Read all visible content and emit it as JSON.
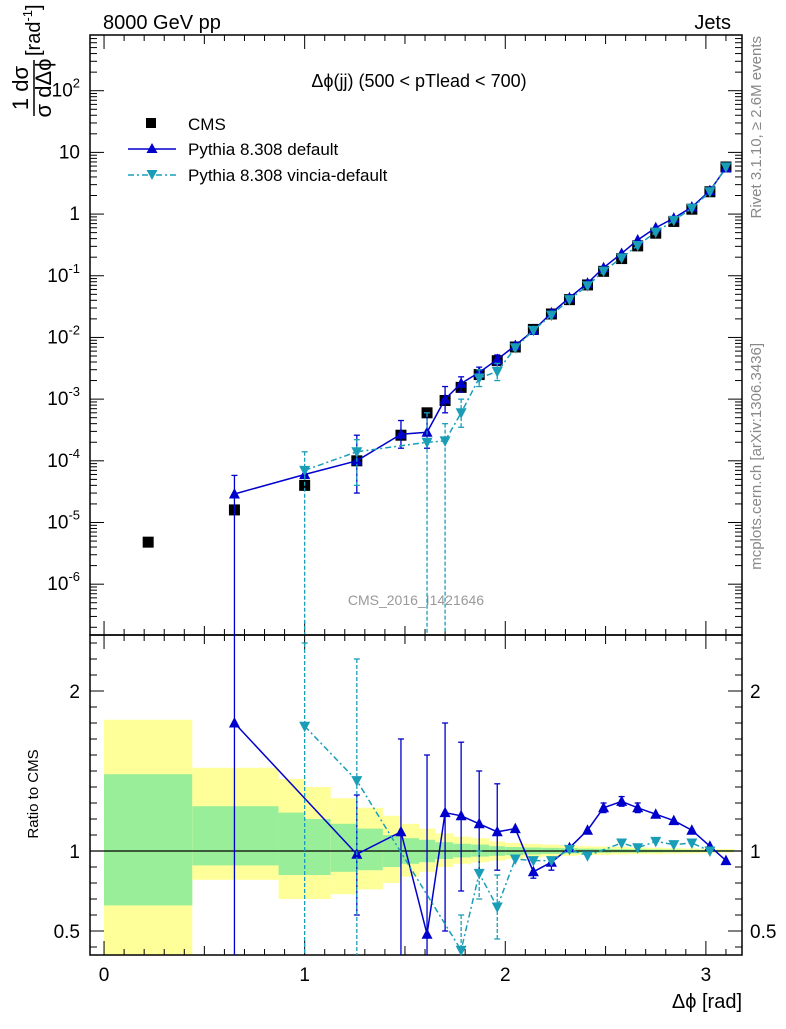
{
  "header": {
    "left": "8000 GeV pp",
    "right": "Jets"
  },
  "side_labels": {
    "rivet": "Rivet 3.1.10, ≥ 2.6M events",
    "mcplots": "mcplots.cern.ch [arXiv:1306.3436]"
  },
  "watermark": "CMS_2016_I1421646",
  "chart_data": [
    {
      "type": "scatter",
      "title": "Δϕ(jj) (500 < pTlead <  700)",
      "ylabel": "1/σ dσ/dΔϕ [rad⁻¹]",
      "ylabel_unit": "[rad",
      "ylabel_sup": "-1",
      "ylabel_close": "]",
      "yscale": "log",
      "ylim": [
        1.5e-07,
        800
      ],
      "xlim": [
        -0.07,
        3.18
      ],
      "y_tick_labels": [
        {
          "base": "10",
          "exp": "-6",
          "value": 1e-06
        },
        {
          "base": "10",
          "exp": "-5",
          "value": 1e-05
        },
        {
          "base": "10",
          "exp": "-4",
          "value": 0.0001
        },
        {
          "base": "10",
          "exp": "-3",
          "value": 0.001
        },
        {
          "base": "10",
          "exp": "-2",
          "value": 0.01
        },
        {
          "base": "10",
          "exp": "-1",
          "value": 0.1
        },
        {
          "base": "1",
          "exp": "",
          "value": 1
        },
        {
          "base": "10",
          "exp": "",
          "value": 10
        },
        {
          "base": "10",
          "exp": "2",
          "value": 100
        }
      ],
      "legend": [
        "CMS",
        "Pythia 8.308 default",
        "Pythia 8.308 vincia-default"
      ],
      "legend_position": "top-left",
      "series": [
        {
          "name": "CMS",
          "color": "#000000",
          "marker": "square",
          "x": [
            0.22,
            0.65,
            1.0,
            1.26,
            1.48,
            1.61,
            1.7,
            1.78,
            1.87,
            1.96,
            2.05,
            2.14,
            2.23,
            2.32,
            2.41,
            2.49,
            2.58,
            2.66,
            2.75,
            2.84,
            2.93,
            3.02,
            3.1
          ],
          "y": [
            4.8e-06,
            1.6e-05,
            4e-05,
            0.0001,
            0.00026,
            0.0006,
            0.00095,
            0.00155,
            0.0025,
            0.0042,
            0.007,
            0.0135,
            0.024,
            0.041,
            0.071,
            0.118,
            0.19,
            0.305,
            0.49,
            0.76,
            1.2,
            2.3,
            5.8
          ]
        },
        {
          "name": "Pythia 8.308 default",
          "color": "#0000cc",
          "marker": "triangle-up",
          "x": [
            0.65,
            1.0,
            1.26,
            1.48,
            1.61,
            1.7,
            1.78,
            1.87,
            1.96,
            2.05,
            2.14,
            2.23,
            2.32,
            2.41,
            2.49,
            2.58,
            2.66,
            2.75,
            2.84,
            2.93,
            3.02,
            3.1
          ],
          "y": [
            2.9e-05,
            6e-05,
            0.0001,
            0.00027,
            0.00029,
            0.001,
            0.0018,
            0.0027,
            0.0044,
            0.0074,
            0.013,
            0.025,
            0.044,
            0.076,
            0.135,
            0.23,
            0.38,
            0.6,
            0.86,
            1.3,
            2.4,
            5.6
          ],
          "err_up": [
            5.8e-05,
            null,
            0.00026,
            0.00045,
            0.0006,
            0.0016,
            0.0023,
            0.0033,
            0.0052,
            null,
            null,
            null,
            null,
            null,
            null,
            null,
            null,
            null,
            null,
            null,
            null,
            null
          ],
          "err_lo": [
            1e-07,
            null,
            3e-05,
            0.00016,
            0.00016,
            0.0006,
            0.0013,
            0.0021,
            0.0036,
            null,
            null,
            null,
            null,
            null,
            null,
            null,
            null,
            null,
            null,
            null,
            null,
            null
          ]
        },
        {
          "name": "Pythia 8.308 vincia-default",
          "color": "#1a9eb8",
          "marker": "triangle-down",
          "x": [
            1.0,
            1.26,
            1.61,
            1.7,
            1.78,
            1.87,
            1.96,
            2.05,
            2.14,
            2.23,
            2.32,
            2.41,
            2.49,
            2.58,
            2.66,
            2.75,
            2.84,
            2.93,
            3.02,
            3.1
          ],
          "y": [
            7e-05,
            0.00014,
            0.0002,
            0.00021,
            0.0006,
            0.0022,
            0.0028,
            0.0068,
            0.013,
            0.023,
            0.041,
            0.069,
            0.119,
            0.195,
            0.31,
            0.51,
            0.79,
            1.24,
            2.3,
            5.8
          ],
          "err_up": [
            0.00014,
            0.00022,
            0.0006,
            0.0004,
            0.001,
            0.003,
            0.0038,
            null,
            null,
            null,
            null,
            null,
            null,
            null,
            null,
            null,
            null,
            null,
            null,
            null
          ],
          "err_lo": [
            1e-07,
            4e-05,
            1e-07,
            1e-07,
            0.00035,
            0.0016,
            0.002,
            null,
            null,
            null,
            null,
            null,
            null,
            null,
            null,
            null,
            null,
            null,
            null,
            null
          ]
        }
      ]
    },
    {
      "type": "line",
      "ylabel": "Ratio to CMS",
      "xlabel": "Δϕ [rad]",
      "xlim": [
        -0.07,
        3.18
      ],
      "ylim": [
        0.35,
        2.35
      ],
      "x_ticks": [
        "0",
        "1",
        "2",
        "3"
      ],
      "y_ticks": [
        "0.5",
        "1",
        "2"
      ],
      "bands": {
        "edges": [
          0.0,
          0.44,
          0.87,
          1.0,
          1.13,
          1.26,
          1.39,
          1.48,
          1.57,
          1.65,
          1.74,
          1.83,
          1.92,
          2.0,
          2.09,
          2.18,
          2.27,
          2.36,
          2.44,
          2.53,
          2.62,
          2.71,
          2.79,
          2.88,
          2.97,
          3.06,
          3.14
        ],
        "yellow_lo": [
          0.35,
          0.82,
          0.7,
          0.7,
          0.73,
          0.76,
          0.8,
          0.84,
          0.87,
          0.9,
          0.92,
          0.93,
          0.94,
          0.95,
          0.96,
          0.965,
          0.97,
          0.975,
          0.975,
          0.978,
          0.98,
          0.98,
          0.983,
          0.985,
          0.987,
          0.99
        ],
        "yellow_hi": [
          1.82,
          1.52,
          1.45,
          1.4,
          1.33,
          1.27,
          1.22,
          1.17,
          1.14,
          1.11,
          1.09,
          1.08,
          1.06,
          1.05,
          1.045,
          1.04,
          1.035,
          1.03,
          1.028,
          1.025,
          1.022,
          1.02,
          1.018,
          1.016,
          1.014,
          1.012
        ],
        "green_lo": [
          0.66,
          0.91,
          0.85,
          0.85,
          0.87,
          0.88,
          0.9,
          0.92,
          0.93,
          0.95,
          0.96,
          0.965,
          0.97,
          0.975,
          0.978,
          0.982,
          0.985,
          0.987,
          0.988,
          0.99,
          0.99,
          0.991,
          0.992,
          0.993,
          0.994,
          0.995
        ],
        "green_hi": [
          1.48,
          1.28,
          1.24,
          1.2,
          1.17,
          1.14,
          1.1,
          1.08,
          1.07,
          1.055,
          1.045,
          1.04,
          1.03,
          1.025,
          1.022,
          1.02,
          1.018,
          1.015,
          1.014,
          1.012,
          1.011,
          1.01,
          1.009,
          1.008,
          1.007,
          1.006
        ],
        "yellow_color": "#ffff99",
        "green_color": "#99ee99"
      },
      "series": [
        {
          "name": "Pythia 8.308 default",
          "color": "#0000cc",
          "marker": "triangle-up",
          "x": [
            0.65,
            1.26,
            1.48,
            1.61,
            1.7,
            1.78,
            1.87,
            1.96,
            2.05,
            2.14,
            2.23,
            2.32,
            2.41,
            2.49,
            2.58,
            2.66,
            2.75,
            2.84,
            2.93,
            3.02,
            3.1
          ],
          "y": [
            1.8,
            0.98,
            1.12,
            0.48,
            1.24,
            1.22,
            1.17,
            1.12,
            1.14,
            0.87,
            0.93,
            1.02,
            1.13,
            1.27,
            1.31,
            1.27,
            1.23,
            1.19,
            1.13,
            1.03,
            0.94
          ],
          "err_up": [
            2.5,
            1.35,
            1.7,
            1.6,
            1.8,
            1.68,
            1.5,
            1.42,
            null,
            null,
            null,
            null,
            null,
            1.3,
            1.34,
            1.3,
            null,
            null,
            null,
            null,
            null
          ],
          "err_lo": [
            0.3,
            0.6,
            0.3,
            0.3,
            0.5,
            0.75,
            0.87,
            0.88,
            null,
            0.83,
            0.88,
            null,
            null,
            1.24,
            1.28,
            1.24,
            null,
            null,
            null,
            null,
            null
          ]
        },
        {
          "name": "Pythia 8.308 vincia-default",
          "color": "#1a9eb8",
          "marker": "triangle-down",
          "x": [
            1.0,
            1.26,
            1.78,
            1.87,
            1.96,
            2.05,
            2.14,
            2.23,
            2.32,
            2.41,
            2.58,
            2.66,
            2.75,
            2.84,
            2.93,
            3.02
          ],
          "y": [
            1.78,
            1.44,
            0.38,
            0.86,
            0.65,
            0.95,
            0.94,
            0.94,
            1.01,
            0.97,
            1.05,
            1.02,
            1.06,
            1.04,
            1.05,
            1.0
          ],
          "err_up": [
            2.3,
            2.2,
            0.6,
            1.0,
            0.85,
            null,
            null,
            null,
            null,
            null,
            null,
            null,
            null,
            null,
            null,
            null
          ],
          "err_lo": [
            0.3,
            0.3,
            0.3,
            0.7,
            0.45,
            null,
            null,
            null,
            null,
            null,
            null,
            null,
            null,
            null,
            null,
            null
          ]
        }
      ]
    }
  ]
}
